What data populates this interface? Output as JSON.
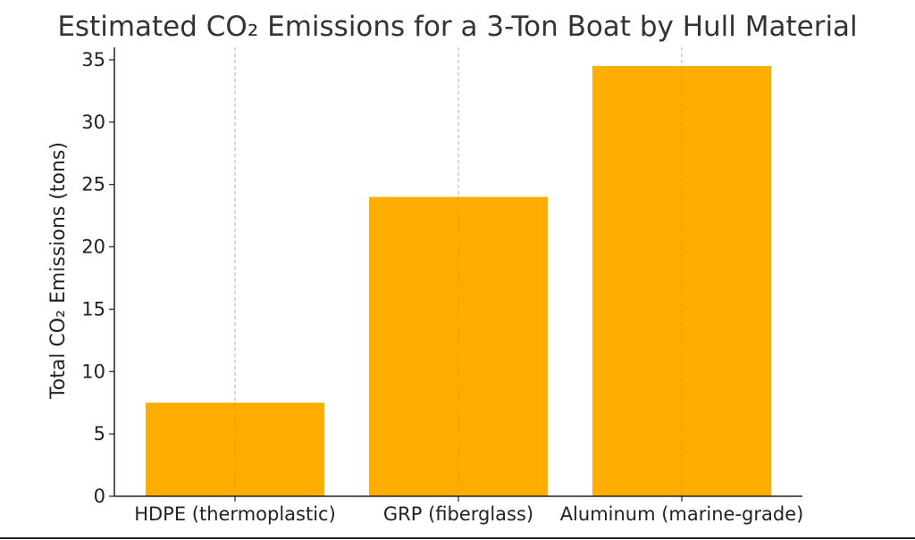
{
  "chart_data": {
    "type": "bar",
    "title": "Estimated CO₂ Emissions for a 3-Ton Boat by Hull Material",
    "xlabel": "",
    "ylabel": "Total CO₂ Emissions (tons)",
    "categories": [
      "HDPE (thermoplastic)",
      "GRP (fiberglass)",
      "Aluminum (marine-grade)"
    ],
    "values": [
      7.5,
      24,
      34.5
    ],
    "ylim": [
      0,
      36
    ],
    "yticks": [
      0,
      5,
      10,
      15,
      20,
      25,
      30,
      35
    ],
    "grid": "vertical-dashed",
    "bar_color": "#ffad00"
  }
}
